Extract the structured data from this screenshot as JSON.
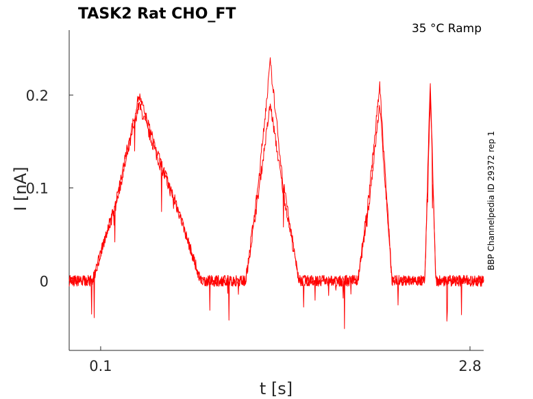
{
  "chart_data": {
    "type": "line",
    "title": "TASK2  Rat  CHO_FT",
    "annotation": "35 °C  Ramp",
    "side_label": "BBP Channelpedia ID 29372 rep 1",
    "xlabel": "t [s]",
    "ylabel": "I [nA]",
    "xlim": [
      -0.13,
      2.9
    ],
    "ylim": [
      -0.075,
      0.27
    ],
    "x_ticks": [
      {
        "value": 0.1,
        "label": "0.1"
      },
      {
        "value": 2.8,
        "label": "2.8"
      }
    ],
    "y_ticks": [
      {
        "value": 0,
        "label": "0"
      },
      {
        "value": 0.1,
        "label": "0.1"
      },
      {
        "value": 0.2,
        "label": "0.2"
      }
    ],
    "grid": false,
    "line_color": "#ff0000",
    "series": [
      {
        "x": [
          -0.13,
          -0.02,
          0.04,
          0.21,
          0.38,
          0.52,
          0.68,
          0.83,
          1.01,
          1.16,
          1.25,
          1.34,
          1.43,
          1.55,
          1.63,
          1.72,
          1.81,
          1.98,
          2.06,
          2.14,
          2.23,
          2.35,
          2.43,
          2.47,
          2.51,
          2.55,
          2.7,
          2.9
        ],
        "y": [
          0,
          0,
          0,
          0.08,
          0.19,
          0.13,
          0.07,
          0,
          0,
          0,
          0.09,
          0.19,
          0.1,
          0,
          0,
          0,
          0,
          0,
          0.08,
          0.19,
          0,
          0,
          0,
          0,
          0.2,
          0,
          0,
          0
        ]
      },
      {
        "x": [
          -0.13,
          -0.02,
          0.04,
          0.21,
          0.38,
          0.52,
          0.68,
          0.83,
          1.01,
          1.16,
          1.25,
          1.34,
          1.43,
          1.55,
          1.63,
          1.72,
          1.81,
          1.98,
          2.06,
          2.14,
          2.23,
          2.35,
          2.43,
          2.47,
          2.51,
          2.55,
          2.7,
          2.9
        ],
        "y": [
          0,
          0,
          0,
          0.085,
          0.2,
          0.135,
          0.072,
          0,
          0,
          0,
          0.1,
          0.235,
          0.11,
          0,
          0,
          0,
          0,
          0,
          0.09,
          0.21,
          0,
          0,
          0,
          0,
          0.218,
          0,
          0,
          0
        ]
      }
    ]
  }
}
